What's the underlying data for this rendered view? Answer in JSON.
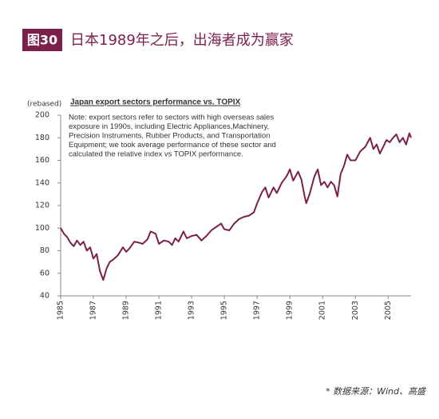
{
  "header": {
    "badge": "图30",
    "title": "日本1989年之后，出海者成为赢家"
  },
  "chart_data": {
    "type": "line",
    "title": "Japan export sectors performance vs. TOPIX",
    "y_label": "(rebased)",
    "note": [
      "Note: export sectors refer to sectors with high overseas sales",
      "exposure in 1990s, including Electric Appliances,Machinery,",
      "Precision Instruments, Rubber Products, and Transportation",
      "Equipment; we took average performance of these sector and",
      "calculated the relative index vs TOPIX performance."
    ],
    "x": [
      1985.0,
      1985.2,
      1985.4,
      1985.6,
      1985.8,
      1986.0,
      1986.2,
      1986.4,
      1986.6,
      1986.8,
      1987.0,
      1987.2,
      1987.4,
      1987.6,
      1987.8,
      1988.0,
      1988.2,
      1988.5,
      1988.8,
      1989.0,
      1989.2,
      1989.5,
      1989.8,
      1990.0,
      1990.3,
      1990.5,
      1990.8,
      1991.0,
      1991.3,
      1991.6,
      1991.8,
      1992.0,
      1992.2,
      1992.5,
      1992.7,
      1993.0,
      1993.3,
      1993.6,
      1993.9,
      1994.2,
      1994.5,
      1994.8,
      1995.0,
      1995.3,
      1995.6,
      1995.9,
      1996.2,
      1996.5,
      1996.8,
      1997.0,
      1997.3,
      1997.5,
      1997.7,
      1998.0,
      1998.2,
      1998.5,
      1998.8,
      1999.0,
      1999.2,
      1999.5,
      1999.7,
      1999.9,
      2000.0,
      2000.2,
      2000.5,
      2000.7,
      2000.9,
      2001.1,
      2001.3,
      2001.5,
      2001.7,
      2001.9,
      2002.1,
      2002.3,
      2002.5,
      2002.7,
      2003.0,
      2003.3,
      2003.6,
      2003.9,
      2004.1,
      2004.3,
      2004.5,
      2004.7,
      2004.9,
      2005.1,
      2005.3,
      2005.5,
      2005.7,
      2005.9,
      2006.1,
      2006.3,
      2006.4
    ],
    "series": [
      {
        "name": "Japan export sectors vs. TOPIX",
        "color": "#7b1f4b",
        "values": [
          100,
          95,
          92,
          87,
          84,
          89,
          85,
          88,
          80,
          83,
          73,
          77,
          62,
          54,
          64,
          70,
          72,
          76,
          83,
          79,
          82,
          88,
          87,
          86,
          90,
          97,
          95,
          86,
          89,
          88,
          85,
          91,
          88,
          97,
          91,
          93,
          94,
          89,
          93,
          98,
          101,
          104,
          99,
          98,
          104,
          108,
          110,
          111,
          114,
          122,
          132,
          136,
          127,
          136,
          131,
          140,
          146,
          152,
          142,
          150,
          143,
          128,
          122,
          130,
          146,
          152,
          138,
          141,
          136,
          141,
          138,
          128,
          148,
          155,
          165,
          160,
          160,
          168,
          172,
          180,
          170,
          174,
          166,
          172,
          178,
          176,
          180,
          183,
          176,
          180,
          174,
          184,
          180
        ]
      }
    ],
    "xlim": [
      1985,
      2006.4
    ],
    "xticks": [
      1985,
      1987,
      1989,
      1991,
      1993,
      1995,
      1997,
      1999,
      2001,
      2003,
      2005
    ],
    "ylim": [
      40,
      200
    ],
    "yticks": [
      40,
      60,
      80,
      100,
      120,
      140,
      160,
      180,
      200
    ],
    "grid": false
  },
  "footer": {
    "source": "* 数据来源：Wind、高盛"
  }
}
